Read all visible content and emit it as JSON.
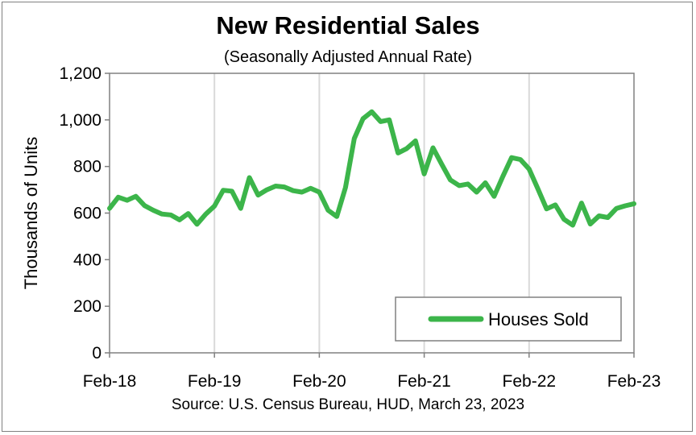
{
  "chart_data": {
    "type": "line",
    "title": "New Residential Sales",
    "subtitle": "(Seasonally Adjusted Annual Rate)",
    "ylabel": "Thousands of Units",
    "xlabel": "",
    "source": "Source:  U.S. Census Bureau, HUD, March 23, 2023",
    "ylim": [
      0,
      1200
    ],
    "y_ticks": [
      0,
      200,
      400,
      600,
      800,
      1000,
      1200
    ],
    "y_tick_labels": [
      "0",
      "200",
      "400",
      "600",
      "800",
      "1,000",
      "1,200"
    ],
    "x_tick_labels": [
      "Feb-18",
      "Feb-19",
      "Feb-20",
      "Feb-21",
      "Feb-22",
      "Feb-23"
    ],
    "x_tick_months": [
      0,
      12,
      24,
      36,
      48,
      60
    ],
    "grid": "vertical",
    "legend_position": "bottom-right",
    "series_color": "#3cb54a",
    "series": [
      {
        "name": "Houses Sold",
        "values": [
          620,
          668,
          655,
          672,
          632,
          612,
          596,
          592,
          571,
          598,
          552,
          595,
          630,
          698,
          694,
          620,
          752,
          677,
          700,
          716,
          712,
          696,
          690,
          706,
          690,
          612,
          585,
          710,
          920,
          1005,
          1035,
          993,
          1000,
          858,
          877,
          910,
          768,
          880,
          810,
          742,
          718,
          725,
          690,
          730,
          672,
          758,
          838,
          830,
          789,
          705,
          618,
          635,
          573,
          548,
          643,
          553,
          588,
          581,
          620,
          631,
          640
        ]
      }
    ]
  }
}
